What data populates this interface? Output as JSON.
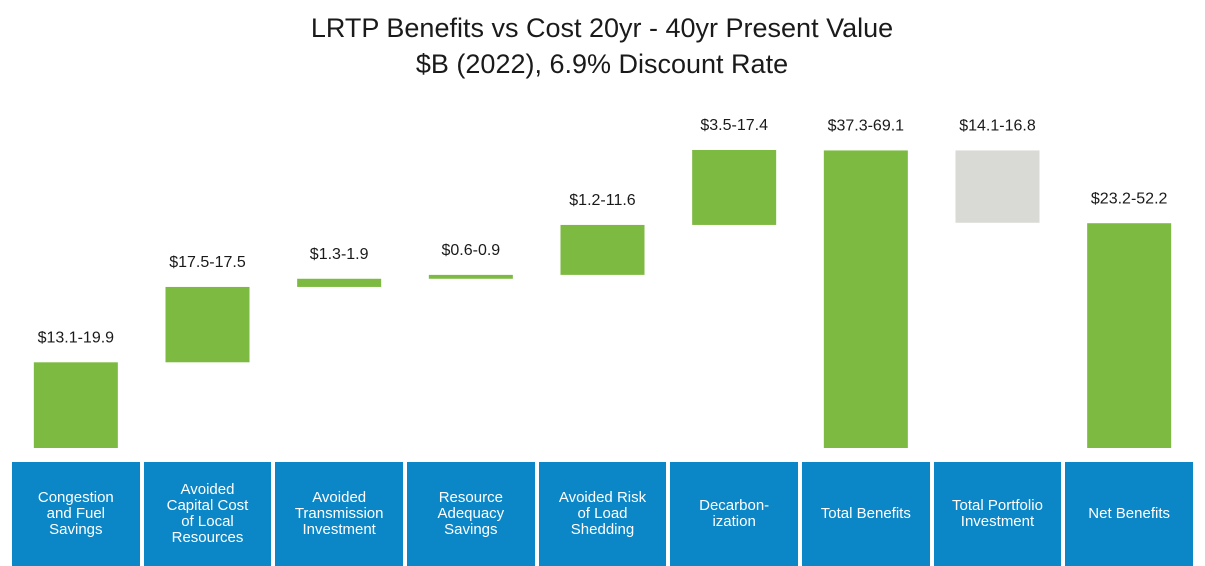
{
  "chart_data": {
    "type": "waterfall",
    "title": "LRTP Benefits vs Cost 20yr - 40yr Present Value",
    "subtitle": "$B (2022), 6.9% Discount Rate",
    "categories": [
      "Congestion and Fuel Savings",
      "Avoided Capital Cost of Local Resources",
      "Avoided Transmission Investment",
      "Resource Adequacy Savings",
      "Avoided Risk of Load Shedding",
      "Decarbon-ization",
      "Total Benefits",
      "Total Portfolio Investment",
      "Net Benefits"
    ],
    "low": [
      13.1,
      17.5,
      1.3,
      0.6,
      1.2,
      3.5,
      37.3,
      14.1,
      23.2
    ],
    "high": [
      19.9,
      17.5,
      1.9,
      0.9,
      11.6,
      17.4,
      69.1,
      16.8,
      52.2
    ],
    "value_labels": [
      "$13.1-19.9",
      "$17.5-17.5",
      "$1.3-1.9",
      "$0.6-0.9",
      "$1.2-11.6",
      "$3.5-17.4",
      "$37.3-69.1",
      "$14.1-16.8",
      "$23.2-52.2"
    ],
    "measure": [
      "relative",
      "relative",
      "relative",
      "relative",
      "relative",
      "relative",
      "total",
      "decrease",
      "total"
    ],
    "color": "#7dba42",
    "decrease_color": "#d9d9d6",
    "category_box_color": "#0b86c6"
  }
}
